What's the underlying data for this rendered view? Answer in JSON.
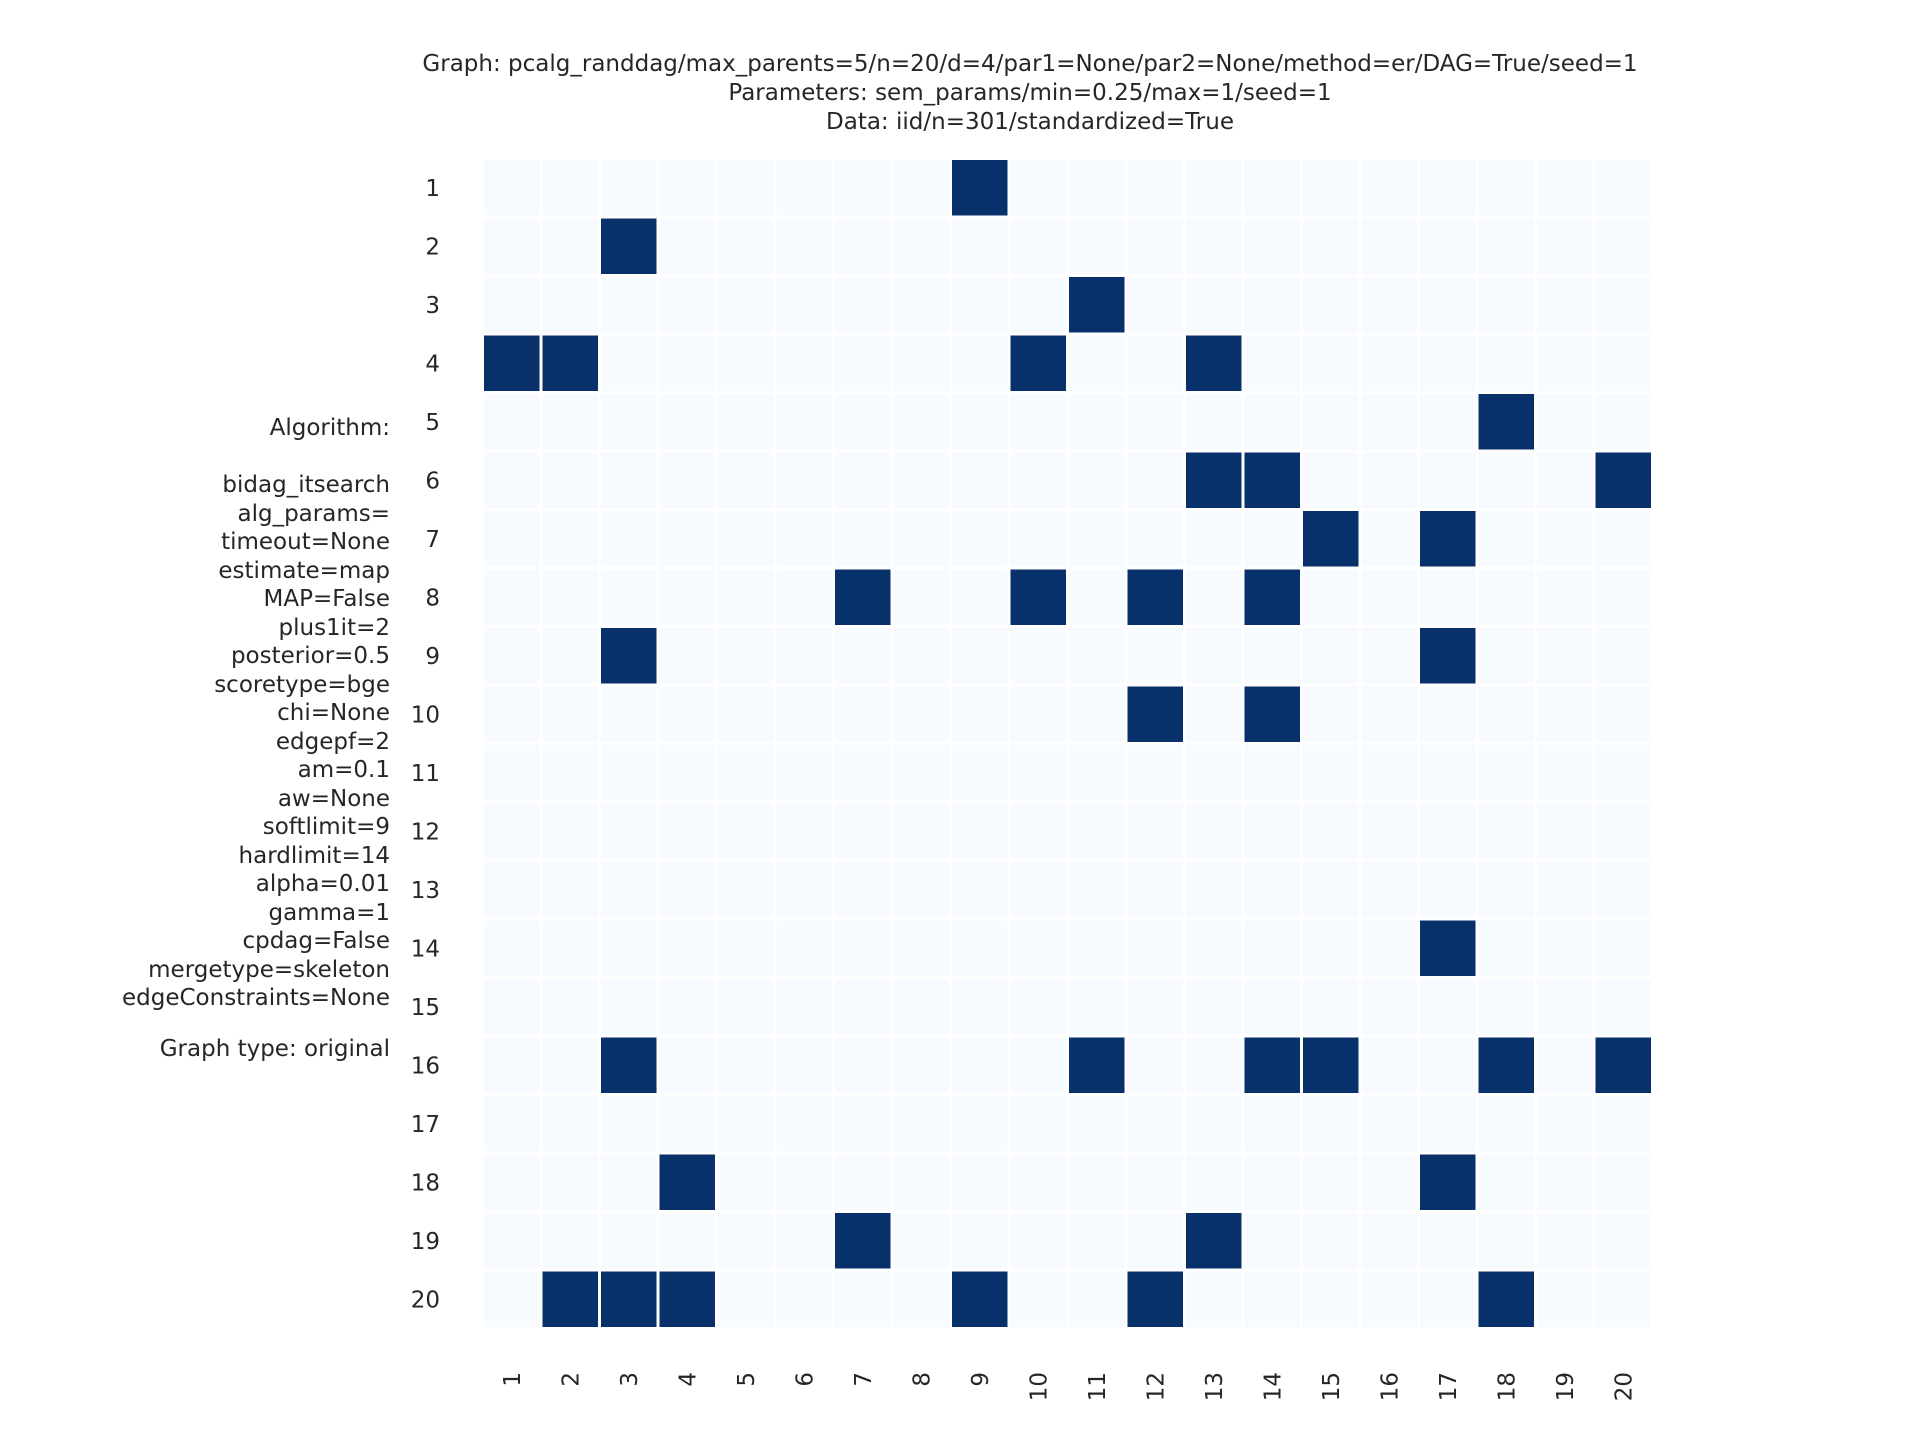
{
  "titles": {
    "graph": "Graph: pcalg_randdag/max_parents=5/n=20/d=4/par1=None/par2=None/method=er/DAG=True/seed=1",
    "parameters": "Parameters: sem_params/min=0.25/max=1/seed=1",
    "data": "Data: iid/n=301/standardized=True"
  },
  "side_panel": {
    "algorithm_label": "Algorithm:",
    "algorithm_name": "bidag_itsearch",
    "params": [
      "alg_params=",
      "timeout=None",
      "estimate=map",
      "MAP=False",
      "plus1it=2",
      "posterior=0.5",
      "scoretype=bge",
      "chi=None",
      "edgepf=2",
      "am=0.1",
      "aw=None",
      "softlimit=9",
      "hardlimit=14",
      "alpha=0.01",
      "gamma=1",
      "cpdag=False",
      "mergetype=skeleton",
      "edgeConstraints=None"
    ],
    "graph_type": "Graph type: original"
  },
  "colors": {
    "edge": "#08306b",
    "empty": "#f7fbff",
    "grid": "#ffffff"
  },
  "chart_data": {
    "type": "heatmap",
    "row_labels": [
      "1",
      "2",
      "3",
      "4",
      "5",
      "6",
      "7",
      "8",
      "9",
      "10",
      "11",
      "12",
      "13",
      "14",
      "15",
      "16",
      "17",
      "18",
      "19",
      "20"
    ],
    "col_labels": [
      "1",
      "2",
      "3",
      "4",
      "5",
      "6",
      "7",
      "8",
      "9",
      "10",
      "11",
      "12",
      "13",
      "14",
      "15",
      "16",
      "17",
      "18",
      "19",
      "20"
    ],
    "values": [
      [
        0,
        0,
        0,
        0,
        0,
        0,
        0,
        0,
        1,
        0,
        0,
        0,
        0,
        0,
        0,
        0,
        0,
        0,
        0,
        0
      ],
      [
        0,
        0,
        1,
        0,
        0,
        0,
        0,
        0,
        0,
        0,
        0,
        0,
        0,
        0,
        0,
        0,
        0,
        0,
        0,
        0
      ],
      [
        0,
        0,
        0,
        0,
        0,
        0,
        0,
        0,
        0,
        0,
        1,
        0,
        0,
        0,
        0,
        0,
        0,
        0,
        0,
        0
      ],
      [
        1,
        1,
        0,
        0,
        0,
        0,
        0,
        0,
        0,
        1,
        0,
        0,
        1,
        0,
        0,
        0,
        0,
        0,
        0,
        0
      ],
      [
        0,
        0,
        0,
        0,
        0,
        0,
        0,
        0,
        0,
        0,
        0,
        0,
        0,
        0,
        0,
        0,
        0,
        1,
        0,
        0
      ],
      [
        0,
        0,
        0,
        0,
        0,
        0,
        0,
        0,
        0,
        0,
        0,
        0,
        1,
        1,
        0,
        0,
        0,
        0,
        0,
        1
      ],
      [
        0,
        0,
        0,
        0,
        0,
        0,
        0,
        0,
        0,
        0,
        0,
        0,
        0,
        0,
        1,
        0,
        1,
        0,
        0,
        0
      ],
      [
        0,
        0,
        0,
        0,
        0,
        0,
        1,
        0,
        0,
        1,
        0,
        1,
        0,
        1,
        0,
        0,
        0,
        0,
        0,
        0
      ],
      [
        0,
        0,
        1,
        0,
        0,
        0,
        0,
        0,
        0,
        0,
        0,
        0,
        0,
        0,
        0,
        0,
        1,
        0,
        0,
        0
      ],
      [
        0,
        0,
        0,
        0,
        0,
        0,
        0,
        0,
        0,
        0,
        0,
        1,
        0,
        1,
        0,
        0,
        0,
        0,
        0,
        0
      ],
      [
        0,
        0,
        0,
        0,
        0,
        0,
        0,
        0,
        0,
        0,
        0,
        0,
        0,
        0,
        0,
        0,
        0,
        0,
        0,
        0
      ],
      [
        0,
        0,
        0,
        0,
        0,
        0,
        0,
        0,
        0,
        0,
        0,
        0,
        0,
        0,
        0,
        0,
        0,
        0,
        0,
        0
      ],
      [
        0,
        0,
        0,
        0,
        0,
        0,
        0,
        0,
        0,
        0,
        0,
        0,
        0,
        0,
        0,
        0,
        0,
        0,
        0,
        0
      ],
      [
        0,
        0,
        0,
        0,
        0,
        0,
        0,
        0,
        0,
        0,
        0,
        0,
        0,
        0,
        0,
        0,
        1,
        0,
        0,
        0
      ],
      [
        0,
        0,
        0,
        0,
        0,
        0,
        0,
        0,
        0,
        0,
        0,
        0,
        0,
        0,
        0,
        0,
        0,
        0,
        0,
        0
      ],
      [
        0,
        0,
        1,
        0,
        0,
        0,
        0,
        0,
        0,
        0,
        1,
        0,
        0,
        1,
        1,
        0,
        0,
        1,
        0,
        1
      ],
      [
        0,
        0,
        0,
        0,
        0,
        0,
        0,
        0,
        0,
        0,
        0,
        0,
        0,
        0,
        0,
        0,
        0,
        0,
        0,
        0
      ],
      [
        0,
        0,
        0,
        1,
        0,
        0,
        0,
        0,
        0,
        0,
        0,
        0,
        0,
        0,
        0,
        0,
        1,
        0,
        0,
        0
      ],
      [
        0,
        0,
        0,
        0,
        0,
        0,
        1,
        0,
        0,
        0,
        0,
        0,
        1,
        0,
        0,
        0,
        0,
        0,
        0,
        0
      ],
      [
        0,
        1,
        1,
        1,
        0,
        0,
        0,
        0,
        1,
        0,
        0,
        1,
        0,
        0,
        0,
        0,
        0,
        1,
        0,
        0
      ]
    ],
    "vmin": 0,
    "vmax": 1,
    "colorbar": false
  }
}
